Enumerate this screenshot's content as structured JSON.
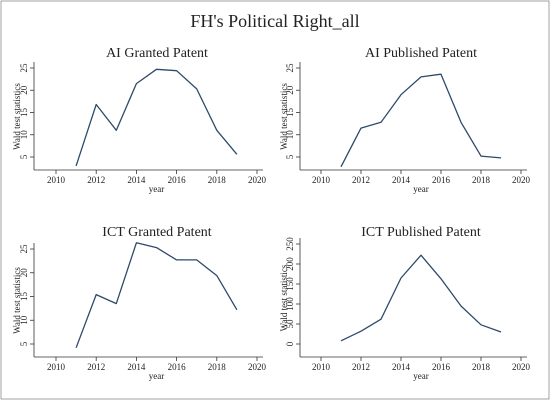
{
  "figure": {
    "title": "FH's Political Right_all"
  },
  "chart_data": [
    {
      "type": "line",
      "title": "AI Granted Patent",
      "xlabel": "year",
      "ylabel": "Wald test statistics",
      "xlim": [
        2010,
        2020
      ],
      "ylim": [
        5,
        25
      ],
      "xticks": [
        2010,
        2012,
        2014,
        2016,
        2018,
        2020
      ],
      "yticks": [
        5,
        10,
        15,
        20,
        25
      ],
      "x": [
        2011,
        2012,
        2013,
        2014,
        2015,
        2016,
        2017,
        2018,
        2019
      ],
      "values": [
        3.0,
        16.8,
        11.0,
        21.5,
        24.7,
        24.4,
        20.3,
        11.0,
        5.6
      ]
    },
    {
      "type": "line",
      "title": "AI Published Patent",
      "xlabel": "year",
      "ylabel": "Wald test statistics",
      "xlim": [
        2010,
        2020
      ],
      "ylim": [
        5,
        25
      ],
      "xticks": [
        2010,
        2012,
        2014,
        2016,
        2018,
        2020
      ],
      "yticks": [
        5,
        10,
        15,
        20,
        25
      ],
      "x": [
        2011,
        2012,
        2013,
        2014,
        2015,
        2016,
        2017,
        2018,
        2019
      ],
      "values": [
        2.8,
        11.5,
        12.8,
        19.0,
        23.0,
        23.6,
        12.8,
        5.2,
        4.8
      ]
    },
    {
      "type": "line",
      "title": "ICT Granted Patent",
      "xlabel": "year",
      "ylabel": "Wald test statistics",
      "xlim": [
        2010,
        2020
      ],
      "ylim": [
        5,
        25
      ],
      "xticks": [
        2010,
        2012,
        2014,
        2016,
        2018,
        2020
      ],
      "yticks": [
        5,
        10,
        15,
        20,
        25
      ],
      "x": [
        2011,
        2012,
        2013,
        2014,
        2015,
        2016,
        2017,
        2018,
        2019
      ],
      "values": [
        4.2,
        15.4,
        13.5,
        26.3,
        25.3,
        22.7,
        22.7,
        19.4,
        12.2
      ]
    },
    {
      "type": "line",
      "title": "ICT Published Patent",
      "xlabel": "year",
      "ylabel": "Wald test statistics",
      "xlim": [
        2010,
        2020
      ],
      "ylim": [
        0,
        250
      ],
      "xticks": [
        2010,
        2012,
        2014,
        2016,
        2018,
        2020
      ],
      "yticks": [
        0,
        50,
        100,
        150,
        200,
        250
      ],
      "x": [
        2011,
        2012,
        2013,
        2014,
        2015,
        2016,
        2017,
        2018,
        2019
      ],
      "values": [
        8,
        32,
        62,
        165,
        222,
        163,
        95,
        48,
        30
      ]
    }
  ]
}
